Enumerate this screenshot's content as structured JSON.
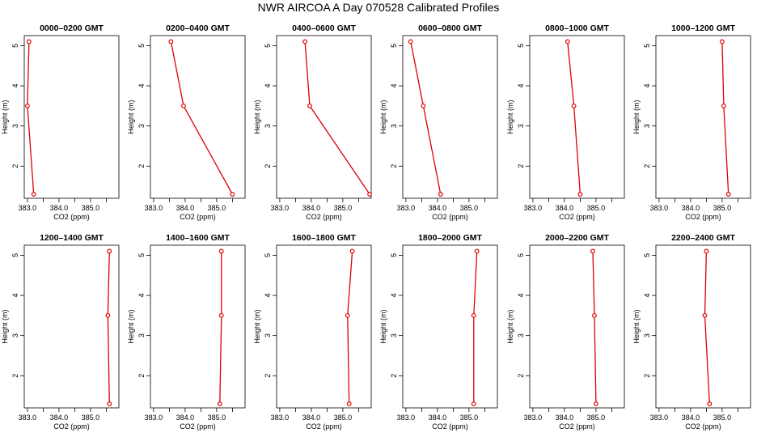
{
  "page": {
    "title": "NWR AIRCOA A  Day 070528  Calibrated Profiles"
  },
  "colors": {
    "series": "#dd0000",
    "axis": "#000000",
    "background": "#ffffff"
  },
  "chart_data": [
    {
      "type": "line",
      "title": "0000–0200 GMT",
      "xlabel": "CO2 (ppm)",
      "ylabel": "Height (m)",
      "xlim": [
        382.9,
        385.9
      ],
      "ylim": [
        1.2,
        5.25
      ],
      "x_ticks": [
        383.0,
        384.0,
        385.0
      ],
      "x_tick_labels": [
        "383.0",
        "384.0",
        "385.0"
      ],
      "y_ticks": [
        2,
        3,
        4,
        5
      ],
      "y_tick_labels": [
        "2",
        "3",
        "4",
        "5"
      ],
      "grid": false,
      "series": [
        {
          "x": [
            383.2,
            383.0,
            383.05
          ],
          "y": [
            1.3,
            3.5,
            5.1
          ]
        }
      ]
    },
    {
      "type": "line",
      "title": "0200–0400 GMT",
      "xlabel": "CO2 (ppm)",
      "ylabel": "Height (m)",
      "xlim": [
        382.9,
        385.9
      ],
      "ylim": [
        1.2,
        5.25
      ],
      "x_ticks": [
        383.0,
        384.0,
        385.0
      ],
      "x_tick_labels": [
        "383.0",
        "384.0",
        "385.0"
      ],
      "y_ticks": [
        2,
        3,
        4,
        5
      ],
      "y_tick_labels": [
        "2",
        "3",
        "4",
        "5"
      ],
      "grid": false,
      "series": [
        {
          "x": [
            385.5,
            383.95,
            383.55
          ],
          "y": [
            1.3,
            3.5,
            5.1
          ]
        }
      ]
    },
    {
      "type": "line",
      "title": "0400–0600 GMT",
      "xlabel": "CO2 (ppm)",
      "ylabel": "Height (m)",
      "xlim": [
        382.9,
        385.9
      ],
      "ylim": [
        1.2,
        5.25
      ],
      "x_ticks": [
        383.0,
        384.0,
        385.0
      ],
      "x_tick_labels": [
        "383.0",
        "384.0",
        "385.0"
      ],
      "y_ticks": [
        2,
        3,
        4,
        5
      ],
      "y_tick_labels": [
        "2",
        "3",
        "4",
        "5"
      ],
      "grid": false,
      "series": [
        {
          "x": [
            385.85,
            383.95,
            383.8
          ],
          "y": [
            1.3,
            3.5,
            5.1
          ]
        }
      ]
    },
    {
      "type": "line",
      "title": "0600–0800 GMT",
      "xlabel": "CO2 (ppm)",
      "ylabel": "Height (m)",
      "xlim": [
        382.9,
        385.9
      ],
      "ylim": [
        1.2,
        5.25
      ],
      "x_ticks": [
        383.0,
        384.0,
        385.0
      ],
      "x_tick_labels": [
        "383.0",
        "384.0",
        "385.0"
      ],
      "y_ticks": [
        2,
        3,
        4,
        5
      ],
      "y_tick_labels": [
        "2",
        "3",
        "4",
        "5"
      ],
      "grid": false,
      "series": [
        {
          "x": [
            384.1,
            383.55,
            383.15
          ],
          "y": [
            1.3,
            3.5,
            5.1
          ]
        }
      ]
    },
    {
      "type": "line",
      "title": "0800–1000 GMT",
      "xlabel": "CO2 (ppm)",
      "ylabel": "Height (m)",
      "xlim": [
        382.9,
        385.9
      ],
      "ylim": [
        1.2,
        5.25
      ],
      "x_ticks": [
        383.0,
        384.0,
        385.0
      ],
      "x_tick_labels": [
        "383.0",
        "384.0",
        "385.0"
      ],
      "y_ticks": [
        2,
        3,
        4,
        5
      ],
      "y_tick_labels": [
        "2",
        "3",
        "4",
        "5"
      ],
      "grid": false,
      "series": [
        {
          "x": [
            384.5,
            384.3,
            384.1
          ],
          "y": [
            1.3,
            3.5,
            5.1
          ]
        }
      ]
    },
    {
      "type": "line",
      "title": "1000–1200 GMT",
      "xlabel": "CO2 (ppm)",
      "ylabel": "Height (m)",
      "xlim": [
        382.9,
        385.9
      ],
      "ylim": [
        1.2,
        5.25
      ],
      "x_ticks": [
        383.0,
        384.0,
        385.0
      ],
      "x_tick_labels": [
        "383.0",
        "384.0",
        "385.0"
      ],
      "y_ticks": [
        2,
        3,
        4,
        5
      ],
      "y_tick_labels": [
        "2",
        "3",
        "4",
        "5"
      ],
      "grid": false,
      "series": [
        {
          "x": [
            385.2,
            385.05,
            385.0
          ],
          "y": [
            1.3,
            3.5,
            5.1
          ]
        }
      ]
    },
    {
      "type": "line",
      "title": "1200–1400 GMT",
      "xlabel": "CO2 (ppm)",
      "ylabel": "Height (m)",
      "xlim": [
        382.9,
        385.9
      ],
      "ylim": [
        1.2,
        5.25
      ],
      "x_ticks": [
        383.0,
        384.0,
        385.0
      ],
      "x_tick_labels": [
        "383.0",
        "384.0",
        "385.0"
      ],
      "y_ticks": [
        2,
        3,
        4,
        5
      ],
      "y_tick_labels": [
        "2",
        "3",
        "4",
        "5"
      ],
      "grid": false,
      "series": [
        {
          "x": [
            385.6,
            385.55,
            385.6
          ],
          "y": [
            1.3,
            3.5,
            5.1
          ]
        }
      ]
    },
    {
      "type": "line",
      "title": "1400–1600 GMT",
      "xlabel": "CO2 (ppm)",
      "ylabel": "Height (m)",
      "xlim": [
        382.9,
        385.9
      ],
      "ylim": [
        1.2,
        5.25
      ],
      "x_ticks": [
        383.0,
        384.0,
        385.0
      ],
      "x_tick_labels": [
        "383.0",
        "384.0",
        "385.0"
      ],
      "y_ticks": [
        2,
        3,
        4,
        5
      ],
      "y_tick_labels": [
        "2",
        "3",
        "4",
        "5"
      ],
      "grid": false,
      "series": [
        {
          "x": [
            385.1,
            385.15,
            385.15
          ],
          "y": [
            1.3,
            3.5,
            5.1
          ]
        }
      ]
    },
    {
      "type": "line",
      "title": "1600–1800 GMT",
      "xlabel": "CO2 (ppm)",
      "ylabel": "Height (m)",
      "xlim": [
        382.9,
        385.9
      ],
      "ylim": [
        1.2,
        5.25
      ],
      "x_ticks": [
        383.0,
        384.0,
        385.0
      ],
      "x_tick_labels": [
        "383.0",
        "384.0",
        "385.0"
      ],
      "y_ticks": [
        2,
        3,
        4,
        5
      ],
      "y_tick_labels": [
        "2",
        "3",
        "4",
        "5"
      ],
      "grid": false,
      "series": [
        {
          "x": [
            385.2,
            385.15,
            385.3
          ],
          "y": [
            1.3,
            3.5,
            5.1
          ]
        }
      ]
    },
    {
      "type": "line",
      "title": "1800–2000 GMT",
      "xlabel": "CO2 (ppm)",
      "ylabel": "Height (m)",
      "xlim": [
        382.9,
        385.9
      ],
      "ylim": [
        1.2,
        5.25
      ],
      "x_ticks": [
        383.0,
        384.0,
        385.0
      ],
      "x_tick_labels": [
        "383.0",
        "384.0",
        "385.0"
      ],
      "y_ticks": [
        2,
        3,
        4,
        5
      ],
      "y_tick_labels": [
        "2",
        "3",
        "4",
        "5"
      ],
      "grid": false,
      "series": [
        {
          "x": [
            385.15,
            385.15,
            385.25
          ],
          "y": [
            1.3,
            3.5,
            5.1
          ]
        }
      ]
    },
    {
      "type": "line",
      "title": "2000–2200 GMT",
      "xlabel": "CO2 (ppm)",
      "ylabel": "Height (m)",
      "xlim": [
        382.9,
        385.9
      ],
      "ylim": [
        1.2,
        5.25
      ],
      "x_ticks": [
        383.0,
        384.0,
        385.0
      ],
      "x_tick_labels": [
        "383.0",
        "384.0",
        "385.0"
      ],
      "y_ticks": [
        2,
        3,
        4,
        5
      ],
      "y_tick_labels": [
        "2",
        "3",
        "4",
        "5"
      ],
      "grid": false,
      "series": [
        {
          "x": [
            385.0,
            384.95,
            384.9
          ],
          "y": [
            1.3,
            3.5,
            5.1
          ]
        }
      ]
    },
    {
      "type": "line",
      "title": "2200–2400 GMT",
      "xlabel": "CO2 (ppm)",
      "ylabel": "Height (m)",
      "xlim": [
        382.9,
        385.9
      ],
      "ylim": [
        1.2,
        5.25
      ],
      "x_ticks": [
        383.0,
        384.0,
        385.0
      ],
      "x_tick_labels": [
        "383.0",
        "384.0",
        "385.0"
      ],
      "y_ticks": [
        2,
        3,
        4,
        5
      ],
      "y_tick_labels": [
        "2",
        "3",
        "4",
        "5"
      ],
      "grid": false,
      "series": [
        {
          "x": [
            384.6,
            384.45,
            384.5
          ],
          "y": [
            1.3,
            3.5,
            5.1
          ]
        }
      ]
    }
  ]
}
